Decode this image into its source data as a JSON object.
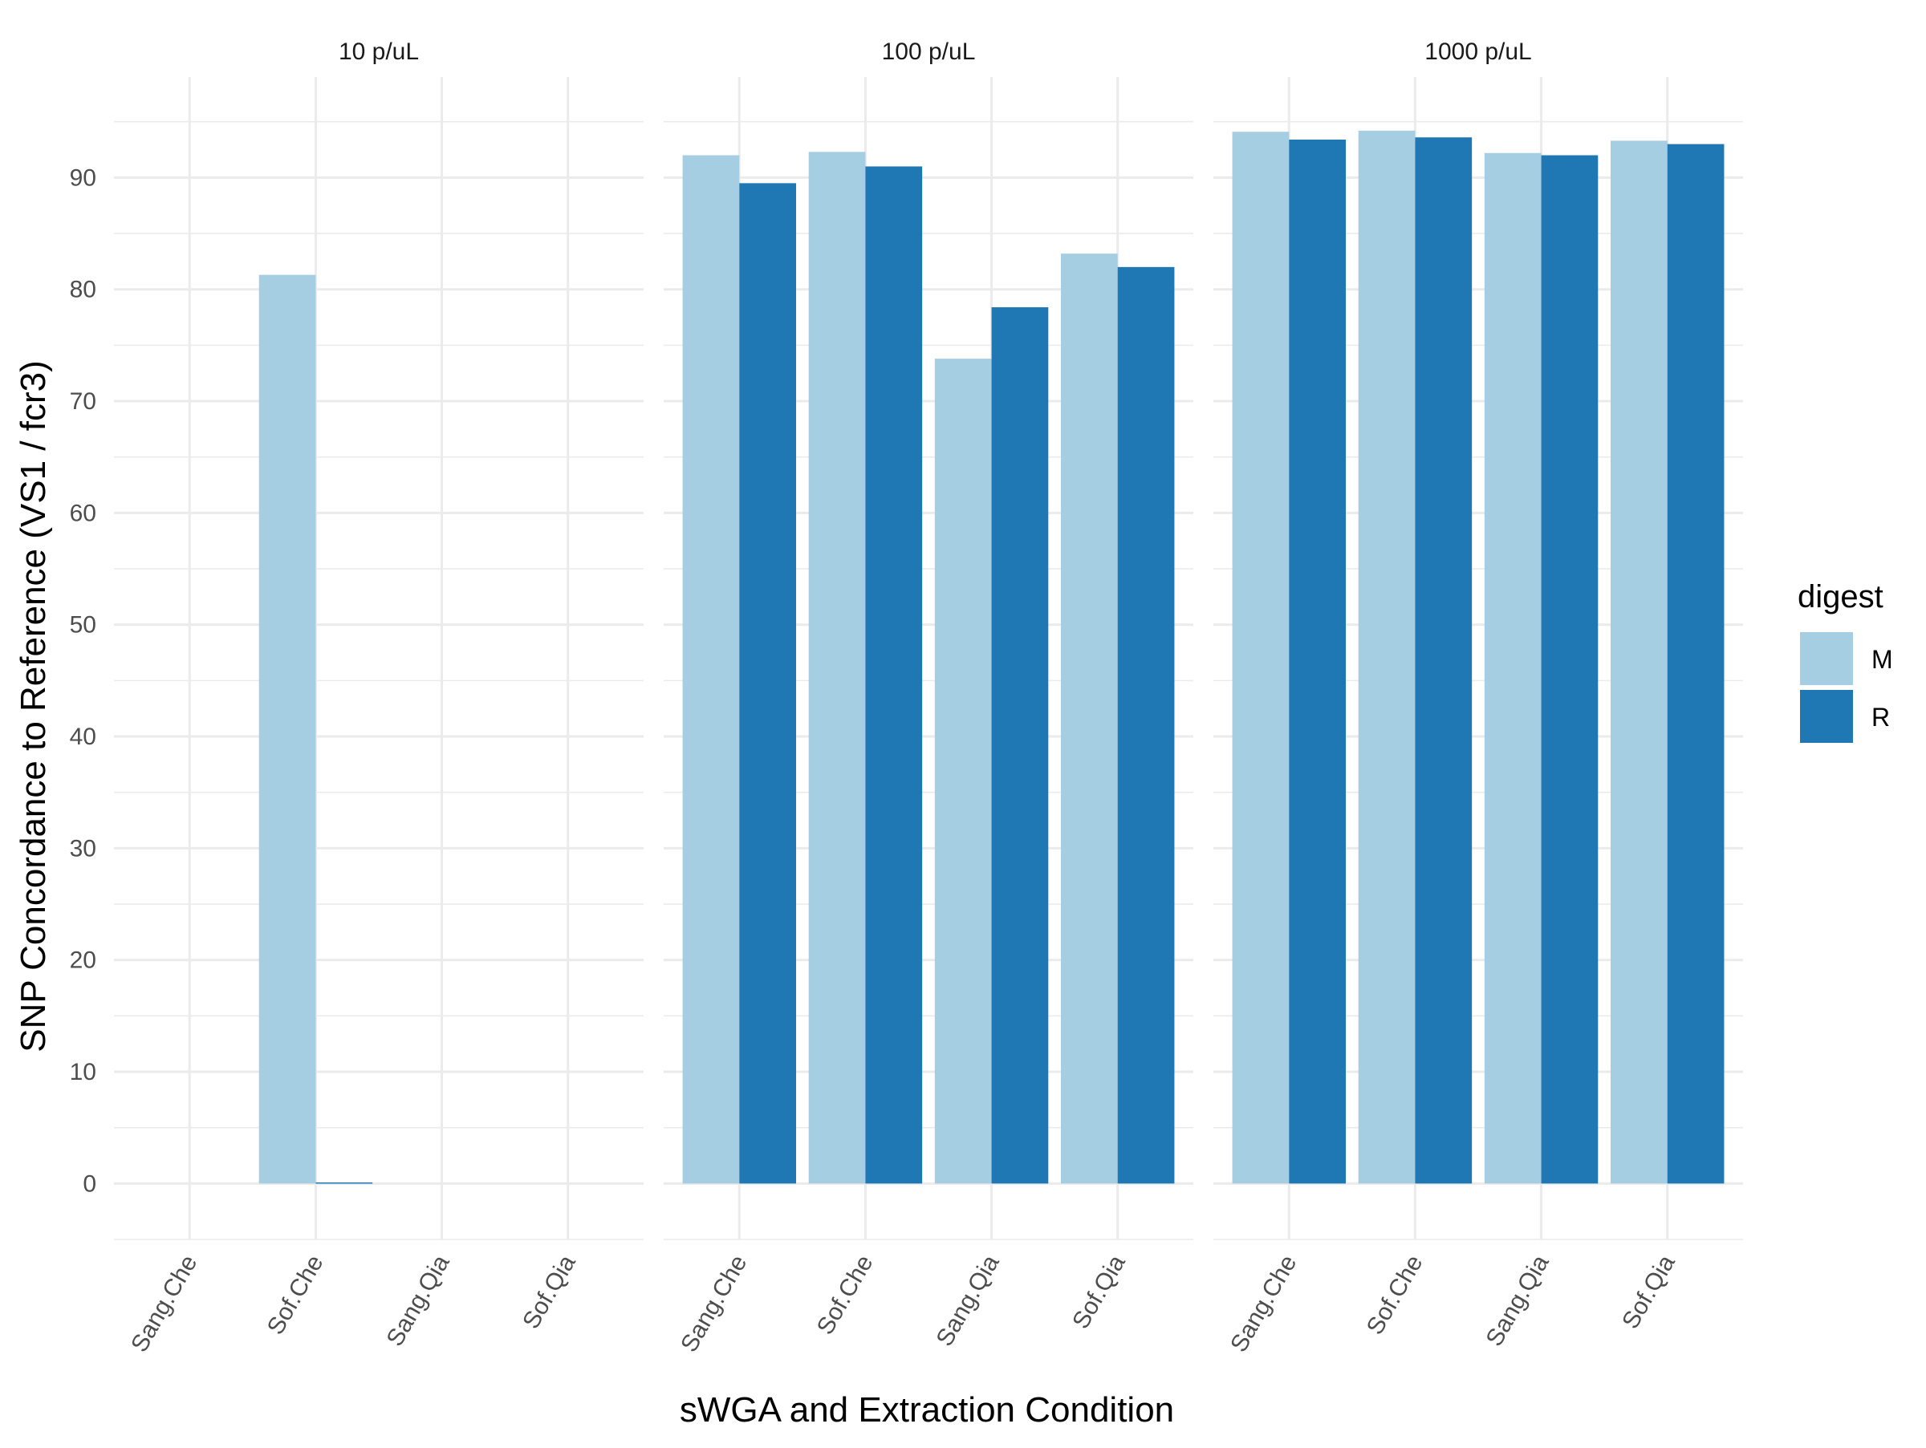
{
  "chart_data": {
    "type": "bar",
    "xlabel": "sWGA and Extraction Condition",
    "ylabel": "SNP Concordance to Reference (VS1 / fcr3)",
    "ylim": [
      -5,
      99
    ],
    "yticks": [
      0,
      10,
      20,
      30,
      40,
      50,
      60,
      70,
      80,
      90
    ],
    "grid": true,
    "legend": {
      "title": "digest",
      "position": "right"
    },
    "categories": [
      "Sang.Che",
      "Sof.Che",
      "Sang.Qia",
      "Sof.Qia"
    ],
    "series_colors": {
      "M": "#a6cee3",
      "R": "#1f78b4"
    },
    "panels": [
      {
        "label": "10 p/uL",
        "series": [
          {
            "name": "M",
            "values": [
              null,
              81.3,
              null,
              null
            ]
          },
          {
            "name": "R",
            "values": [
              null,
              0.1,
              null,
              null
            ]
          }
        ]
      },
      {
        "label": "100 p/uL",
        "series": [
          {
            "name": "M",
            "values": [
              92.0,
              92.3,
              73.8,
              83.2
            ]
          },
          {
            "name": "R",
            "values": [
              89.5,
              91.0,
              78.4,
              82.0
            ]
          }
        ]
      },
      {
        "label": "1000 p/uL",
        "series": [
          {
            "name": "M",
            "values": [
              94.1,
              94.2,
              92.2,
              93.3
            ]
          },
          {
            "name": "R",
            "values": [
              93.4,
              93.6,
              92.0,
              93.0
            ]
          }
        ]
      }
    ]
  }
}
